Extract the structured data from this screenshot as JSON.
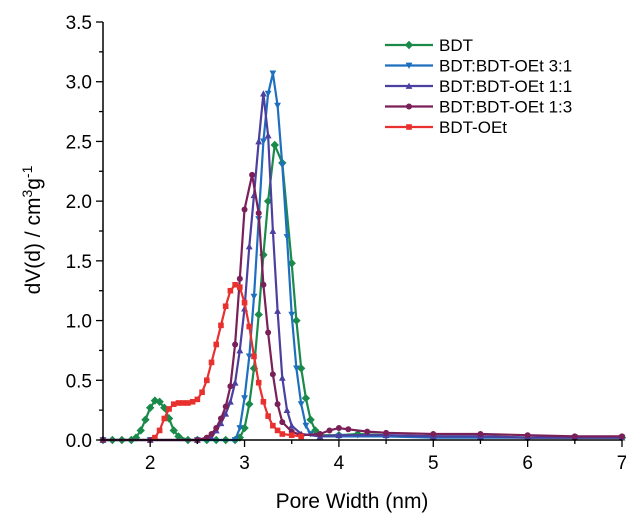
{
  "chart_data": {
    "type": "line",
    "title": "",
    "xlabel": "Pore Width (nm)",
    "ylabel_main": "dV(d) / cm",
    "ylabel_sup1": "3",
    "ylabel_mid": "g",
    "ylabel_sup2": "-1",
    "xlim": [
      1.5,
      7
    ],
    "ylim": [
      0,
      3.5
    ],
    "xticks": [
      "2",
      "3",
      "4",
      "5",
      "6",
      "7"
    ],
    "yticks": [
      "0.0",
      "0.5",
      "1.0",
      "1.5",
      "2.0",
      "2.5",
      "3.0",
      "3.5"
    ],
    "grid": false,
    "legend_position": "top-right",
    "series": [
      {
        "name": "BDT",
        "color": "#1a8a4a",
        "marker": "diamond",
        "points": [
          [
            1.5,
            0
          ],
          [
            1.6,
            0
          ],
          [
            1.7,
            0
          ],
          [
            1.8,
            0
          ],
          [
            1.85,
            0.02
          ],
          [
            1.9,
            0.08
          ],
          [
            1.95,
            0.17
          ],
          [
            2.0,
            0.27
          ],
          [
            2.05,
            0.33
          ],
          [
            2.1,
            0.32
          ],
          [
            2.15,
            0.27
          ],
          [
            2.2,
            0.18
          ],
          [
            2.25,
            0.08
          ],
          [
            2.3,
            0.03
          ],
          [
            2.4,
            0
          ],
          [
            2.5,
            0
          ],
          [
            2.6,
            0
          ],
          [
            2.7,
            0
          ],
          [
            2.8,
            0
          ],
          [
            2.9,
            0
          ],
          [
            2.95,
            0.02
          ],
          [
            3.0,
            0.1
          ],
          [
            3.05,
            0.3
          ],
          [
            3.1,
            0.6
          ],
          [
            3.15,
            1.05
          ],
          [
            3.2,
            1.55
          ],
          [
            3.25,
            2.0
          ],
          [
            3.32,
            2.47
          ],
          [
            3.4,
            2.32
          ],
          [
            3.5,
            1.48
          ],
          [
            3.55,
            1.0
          ],
          [
            3.6,
            0.6
          ],
          [
            3.65,
            0.35
          ],
          [
            3.7,
            0.17
          ],
          [
            3.75,
            0.08
          ],
          [
            3.8,
            0.04
          ],
          [
            4.0,
            0.04
          ],
          [
            4.2,
            0.05
          ],
          [
            4.5,
            0.04
          ],
          [
            5.0,
            0.03
          ],
          [
            5.5,
            0.03
          ],
          [
            6.0,
            0.02
          ],
          [
            6.5,
            0.02
          ],
          [
            7.0,
            0.02
          ]
        ]
      },
      {
        "name": "BDT:BDT-OEt 3:1",
        "color": "#1f6fbf",
        "marker": "triangle-down",
        "points": [
          [
            1.5,
            0
          ],
          [
            2.0,
            0
          ],
          [
            2.5,
            0
          ],
          [
            2.9,
            0
          ],
          [
            2.95,
            0.1
          ],
          [
            3.0,
            0.35
          ],
          [
            3.05,
            0.7
          ],
          [
            3.1,
            1.2
          ],
          [
            3.15,
            1.85
          ],
          [
            3.2,
            2.5
          ],
          [
            3.25,
            2.9
          ],
          [
            3.3,
            3.07
          ],
          [
            3.35,
            2.8
          ],
          [
            3.4,
            2.3
          ],
          [
            3.45,
            1.7
          ],
          [
            3.5,
            1.05
          ],
          [
            3.55,
            0.6
          ],
          [
            3.6,
            0.3
          ],
          [
            3.65,
            0.12
          ],
          [
            3.7,
            0.05
          ],
          [
            3.8,
            0.03
          ],
          [
            4.0,
            0.03
          ],
          [
            4.5,
            0.03
          ],
          [
            5.0,
            0.02
          ],
          [
            5.5,
            0.02
          ],
          [
            6.0,
            0.02
          ],
          [
            6.5,
            0.02
          ],
          [
            7.0,
            0.02
          ]
        ]
      },
      {
        "name": "BDT:BDT-OEt 1:1",
        "color": "#4b3fa0",
        "marker": "triangle-up",
        "points": [
          [
            1.5,
            0
          ],
          [
            2.0,
            0
          ],
          [
            2.5,
            0
          ],
          [
            2.65,
            0.02
          ],
          [
            2.7,
            0.08
          ],
          [
            2.75,
            0.14
          ],
          [
            2.8,
            0.22
          ],
          [
            2.85,
            0.32
          ],
          [
            2.9,
            0.48
          ],
          [
            2.95,
            0.75
          ],
          [
            3.0,
            1.1
          ],
          [
            3.05,
            1.62
          ],
          [
            3.1,
            2.05
          ],
          [
            3.15,
            2.5
          ],
          [
            3.2,
            2.9
          ],
          [
            3.25,
            2.55
          ],
          [
            3.3,
            1.75
          ],
          [
            3.35,
            1.08
          ],
          [
            3.4,
            0.52
          ],
          [
            3.45,
            0.25
          ],
          [
            3.5,
            0.12
          ],
          [
            3.6,
            0.05
          ],
          [
            3.8,
            0.03
          ],
          [
            4.0,
            0.04
          ],
          [
            4.5,
            0.04
          ],
          [
            5.0,
            0.03
          ],
          [
            5.5,
            0.03
          ],
          [
            6.0,
            0.02
          ],
          [
            6.5,
            0.02
          ],
          [
            7.0,
            0.02
          ]
        ]
      },
      {
        "name": "BDT:BDT-OEt 1:3",
        "color": "#7a1f57",
        "marker": "circle",
        "points": [
          [
            1.5,
            0
          ],
          [
            2.0,
            0
          ],
          [
            2.5,
            0
          ],
          [
            2.6,
            0.02
          ],
          [
            2.65,
            0.05
          ],
          [
            2.7,
            0.1
          ],
          [
            2.75,
            0.18
          ],
          [
            2.8,
            0.28
          ],
          [
            2.85,
            0.45
          ],
          [
            2.9,
            0.8
          ],
          [
            2.95,
            1.35
          ],
          [
            3.0,
            1.93
          ],
          [
            3.08,
            2.22
          ],
          [
            3.15,
            1.9
          ],
          [
            3.2,
            1.3
          ],
          [
            3.25,
            0.9
          ],
          [
            3.3,
            0.55
          ],
          [
            3.35,
            0.3
          ],
          [
            3.4,
            0.15
          ],
          [
            3.5,
            0.07
          ],
          [
            3.6,
            0.04
          ],
          [
            3.8,
            0.05
          ],
          [
            3.9,
            0.08
          ],
          [
            4.0,
            0.1
          ],
          [
            4.1,
            0.09
          ],
          [
            4.3,
            0.07
          ],
          [
            4.5,
            0.06
          ],
          [
            5.0,
            0.05
          ],
          [
            5.5,
            0.05
          ],
          [
            6.0,
            0.04
          ],
          [
            6.5,
            0.03
          ],
          [
            7.0,
            0.03
          ]
        ]
      },
      {
        "name": "BDT-OEt",
        "color": "#e8302f",
        "marker": "square",
        "points": [
          [
            2.05,
            0.02
          ],
          [
            2.1,
            0.08
          ],
          [
            2.15,
            0.18
          ],
          [
            2.2,
            0.26
          ],
          [
            2.25,
            0.3
          ],
          [
            2.3,
            0.31
          ],
          [
            2.35,
            0.31
          ],
          [
            2.4,
            0.31
          ],
          [
            2.45,
            0.32
          ],
          [
            2.5,
            0.34
          ],
          [
            2.55,
            0.4
          ],
          [
            2.6,
            0.5
          ],
          [
            2.65,
            0.65
          ],
          [
            2.7,
            0.8
          ],
          [
            2.75,
            0.96
          ],
          [
            2.8,
            1.12
          ],
          [
            2.85,
            1.25
          ],
          [
            2.9,
            1.3
          ],
          [
            2.95,
            1.28
          ],
          [
            3.0,
            1.15
          ],
          [
            3.05,
            0.95
          ],
          [
            3.1,
            0.7
          ],
          [
            3.15,
            0.48
          ],
          [
            3.2,
            0.32
          ],
          [
            3.25,
            0.2
          ],
          [
            3.3,
            0.12
          ],
          [
            3.35,
            0.08
          ],
          [
            3.4,
            0.05
          ],
          [
            3.5,
            0.04
          ],
          [
            3.6,
            0.03
          ]
        ]
      }
    ]
  }
}
